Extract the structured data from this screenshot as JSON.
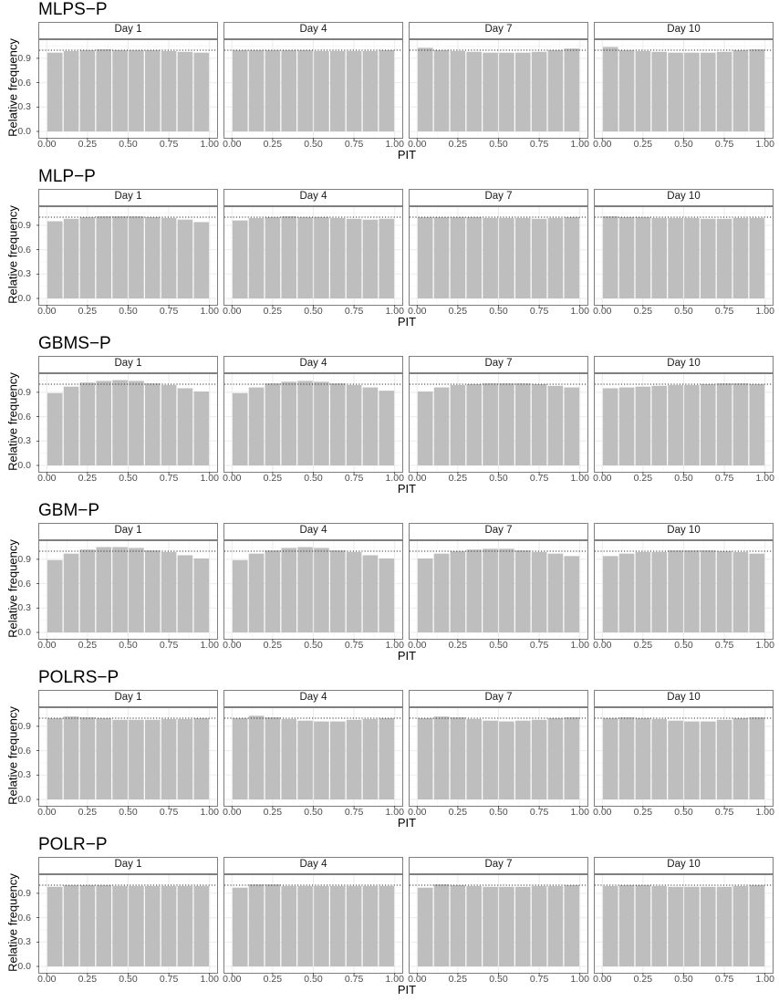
{
  "xlabel": "PIT",
  "ylabel": "Relative frequency",
  "x_ticks": [
    "0.00",
    "0.25",
    "0.50",
    "0.75",
    "1.00"
  ],
  "y_ticks": [
    "0.0",
    "0.3",
    "0.6",
    "0.9"
  ],
  "colors": {
    "bar": "#bebebe",
    "grid": "#ebebeb",
    "reference": "#333333"
  },
  "chart_data": {
    "type": "bar",
    "x_domain": [
      0,
      1
    ],
    "ylim": [
      0,
      1.15
    ],
    "reference_line": 1.0,
    "bins": 10,
    "grid": true,
    "rows": [
      {
        "title": "MLPS−P",
        "panels": [
          {
            "label": "Day 1",
            "values": [
              0.97,
              0.99,
              1.0,
              1.01,
              1.0,
              1.0,
              1.0,
              0.99,
              0.98,
              0.97
            ]
          },
          {
            "label": "Day 4",
            "values": [
              1.0,
              1.0,
              1.0,
              1.0,
              1.0,
              0.99,
              0.99,
              0.99,
              0.99,
              1.0
            ]
          },
          {
            "label": "Day 7",
            "values": [
              1.03,
              1.0,
              0.99,
              0.98,
              0.97,
              0.97,
              0.97,
              0.98,
              1.0,
              1.02
            ]
          },
          {
            "label": "Day 10",
            "values": [
              1.04,
              1.0,
              0.99,
              0.98,
              0.97,
              0.97,
              0.97,
              0.98,
              1.0,
              1.01
            ]
          }
        ]
      },
      {
        "title": "MLP−P",
        "panels": [
          {
            "label": "Day 1",
            "values": [
              0.95,
              0.98,
              1.0,
              1.01,
              1.01,
              1.01,
              1.0,
              0.99,
              0.97,
              0.94
            ]
          },
          {
            "label": "Day 4",
            "values": [
              0.96,
              0.99,
              1.0,
              1.01,
              1.0,
              1.0,
              0.99,
              0.98,
              0.97,
              0.98
            ]
          },
          {
            "label": "Day 7",
            "values": [
              1.0,
              1.0,
              1.0,
              1.0,
              0.99,
              0.99,
              0.99,
              0.98,
              0.99,
              1.0
            ]
          },
          {
            "label": "Day 10",
            "values": [
              1.01,
              1.0,
              1.0,
              0.99,
              0.99,
              0.99,
              0.98,
              0.98,
              0.99,
              0.99
            ]
          }
        ]
      },
      {
        "title": "GBMS−P",
        "panels": [
          {
            "label": "Day 1",
            "values": [
              0.89,
              0.97,
              1.02,
              1.04,
              1.05,
              1.04,
              1.01,
              0.99,
              0.95,
              0.91
            ]
          },
          {
            "label": "Day 4",
            "values": [
              0.89,
              0.96,
              1.01,
              1.03,
              1.04,
              1.03,
              1.01,
              0.99,
              0.96,
              0.92
            ]
          },
          {
            "label": "Day 7",
            "values": [
              0.91,
              0.96,
              0.99,
              1.0,
              1.01,
              1.01,
              1.01,
              1.0,
              0.98,
              0.96
            ]
          },
          {
            "label": "Day 10",
            "values": [
              0.95,
              0.96,
              0.97,
              0.98,
              0.99,
              0.99,
              1.0,
              1.01,
              1.01,
              1.0
            ]
          }
        ]
      },
      {
        "title": "GBM−P",
        "panels": [
          {
            "label": "Day 1",
            "values": [
              0.89,
              0.97,
              1.02,
              1.05,
              1.05,
              1.04,
              1.01,
              0.99,
              0.95,
              0.91
            ]
          },
          {
            "label": "Day 4",
            "values": [
              0.89,
              0.97,
              1.01,
              1.04,
              1.05,
              1.04,
              1.01,
              0.99,
              0.95,
              0.91
            ]
          },
          {
            "label": "Day 7",
            "values": [
              0.91,
              0.97,
              1.0,
              1.02,
              1.03,
              1.03,
              1.01,
              0.99,
              0.97,
              0.94
            ]
          },
          {
            "label": "Day 10",
            "values": [
              0.94,
              0.97,
              0.99,
              0.99,
              1.01,
              1.01,
              1.01,
              1.0,
              0.99,
              0.97
            ]
          }
        ]
      },
      {
        "title": "POLRS−P",
        "panels": [
          {
            "label": "Day 1",
            "values": [
              1.0,
              1.02,
              1.01,
              1.0,
              0.98,
              0.98,
              0.98,
              0.99,
              0.99,
              1.0
            ]
          },
          {
            "label": "Day 4",
            "values": [
              1.0,
              1.03,
              1.01,
              0.99,
              0.97,
              0.96,
              0.96,
              0.98,
              0.99,
              1.0
            ]
          },
          {
            "label": "Day 7",
            "values": [
              1.0,
              1.02,
              1.01,
              0.99,
              0.97,
              0.96,
              0.97,
              0.98,
              1.0,
              1.01
            ]
          },
          {
            "label": "Day 10",
            "values": [
              1.0,
              1.01,
              1.0,
              0.99,
              0.97,
              0.96,
              0.96,
              0.98,
              1.0,
              1.01
            ]
          }
        ]
      },
      {
        "title": "POLR−P",
        "panels": [
          {
            "label": "Day 1",
            "values": [
              0.98,
              1.0,
              1.0,
              1.0,
              0.99,
              0.99,
              0.99,
              0.99,
              0.99,
              0.99
            ]
          },
          {
            "label": "Day 4",
            "values": [
              0.97,
              1.01,
              1.01,
              0.99,
              0.99,
              0.99,
              0.99,
              0.99,
              0.99,
              0.99
            ]
          },
          {
            "label": "Day 7",
            "values": [
              0.97,
              1.01,
              1.0,
              0.99,
              0.98,
              0.98,
              0.98,
              0.99,
              0.99,
              1.0
            ]
          },
          {
            "label": "Day 10",
            "values": [
              0.99,
              1.0,
              1.0,
              0.99,
              0.98,
              0.98,
              0.98,
              0.98,
              0.99,
              1.0
            ]
          }
        ]
      }
    ]
  }
}
